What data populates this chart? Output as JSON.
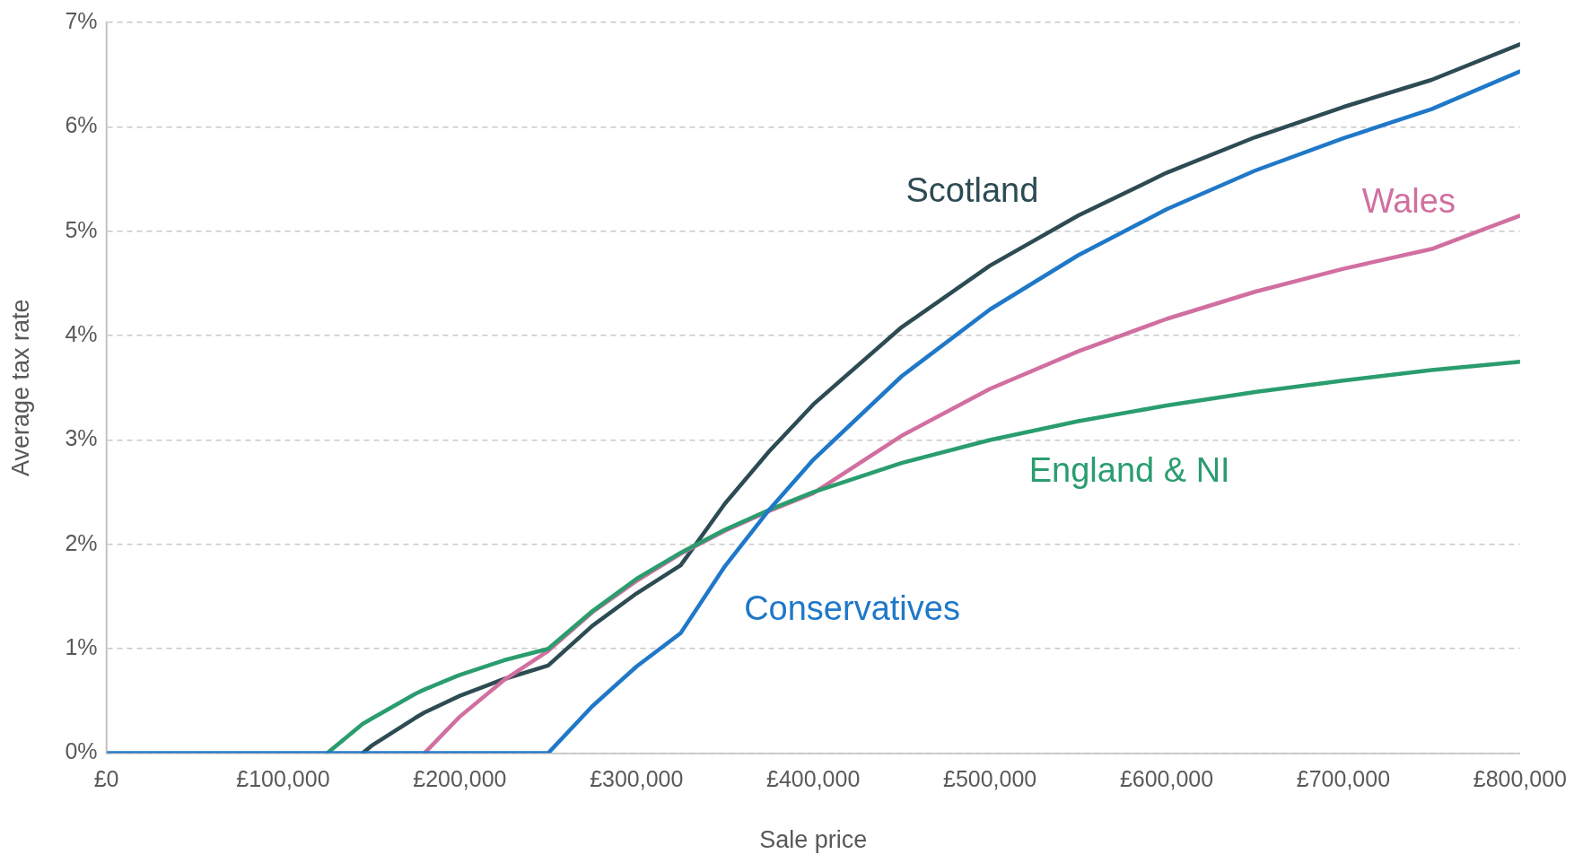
{
  "chart_data": {
    "type": "line",
    "xlabel": "Sale price",
    "ylabel": "Average tax rate",
    "x": [
      0,
      125000,
      145000,
      150000,
      175000,
      180000,
      200000,
      225000,
      250000,
      275000,
      300000,
      325000,
      350000,
      375000,
      400000,
      450000,
      500000,
      550000,
      600000,
      650000,
      700000,
      750000,
      800000
    ],
    "series": [
      {
        "name": "Scotland",
        "color": "#2d4b53",
        "values": [
          null,
          null,
          0,
          0.07,
          0.34,
          0.39,
          0.55,
          0.71,
          0.84,
          1.22,
          1.53,
          1.8,
          2.39,
          2.89,
          3.34,
          4.08,
          4.67,
          5.15,
          5.56,
          5.9,
          6.19,
          6.45,
          6.79
        ]
      },
      {
        "name": "Wales",
        "color": "#d16fa0",
        "values": [
          null,
          null,
          null,
          null,
          null,
          0,
          0.35,
          0.7,
          0.98,
          1.35,
          1.65,
          1.91,
          2.13,
          2.32,
          2.49,
          3.04,
          3.49,
          3.85,
          4.16,
          4.42,
          4.64,
          4.83,
          5.15
        ]
      },
      {
        "name": "England & NI",
        "color": "#2a9d6e",
        "values": [
          null,
          0,
          0.28,
          0.33,
          0.57,
          0.61,
          0.75,
          0.89,
          1.0,
          1.36,
          1.67,
          1.92,
          2.14,
          2.33,
          2.5,
          2.78,
          3.0,
          3.18,
          3.33,
          3.46,
          3.57,
          3.67,
          3.75
        ]
      },
      {
        "name": "Conservatives",
        "color": "#1f78c8",
        "values": [
          0,
          0,
          0,
          0,
          0,
          0,
          0,
          0,
          0,
          0.45,
          0.83,
          1.15,
          1.79,
          2.33,
          2.81,
          3.61,
          4.25,
          4.77,
          5.21,
          5.58,
          5.89,
          6.17,
          6.53
        ]
      }
    ],
    "xlim": [
      0,
      800000
    ],
    "xticks": [
      {
        "value": 0,
        "label": "£0"
      },
      {
        "value": 100000,
        "label": "£100,000"
      },
      {
        "value": 200000,
        "label": "£200,000"
      },
      {
        "value": 300000,
        "label": "£300,000"
      },
      {
        "value": 400000,
        "label": "£400,000"
      },
      {
        "value": 500000,
        "label": "£500,000"
      },
      {
        "value": 600000,
        "label": "£600,000"
      },
      {
        "value": 700000,
        "label": "£700,000"
      },
      {
        "value": 800000,
        "label": "£800,000"
      }
    ],
    "ylim": [
      0,
      7
    ],
    "yticks": [
      {
        "value": 0,
        "label": "0%"
      },
      {
        "value": 1,
        "label": "1%"
      },
      {
        "value": 2,
        "label": "2%"
      },
      {
        "value": 3,
        "label": "3%"
      },
      {
        "value": 4,
        "label": "4%"
      },
      {
        "value": 5,
        "label": "5%"
      },
      {
        "value": 6,
        "label": "6%"
      },
      {
        "value": 7,
        "label": "7%"
      }
    ],
    "grid": "y",
    "legend": false,
    "marker": "none",
    "line_style": "solid"
  }
}
